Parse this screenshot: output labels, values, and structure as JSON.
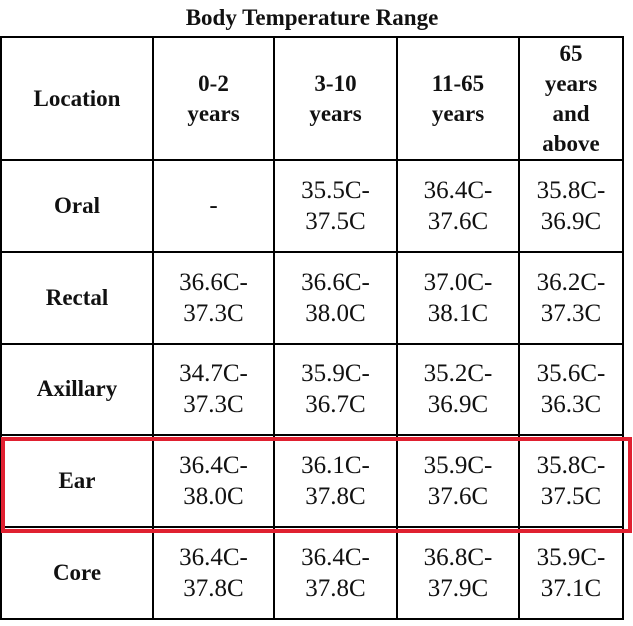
{
  "table": {
    "title": "Body Temperature Range",
    "header": [
      "Location",
      "0-2 years",
      "3-10 years",
      "11-65 years",
      "65 years and above"
    ],
    "rows": [
      [
        "Oral",
        "-",
        "35.5C-37.5C",
        "36.4C-37.6C",
        "35.8C-36.9C"
      ],
      [
        "Rectal",
        "36.6C-37.3C",
        "36.6C-38.0C",
        "37.0C-38.1C",
        "36.2C-37.3C"
      ],
      [
        "Axillary",
        "34.7C-37.3C",
        "35.9C-36.7C",
        "35.2C-36.9C",
        "35.6C-36.3C"
      ],
      [
        "Ear",
        "36.4C-38.0C",
        "36.1C-37.8C",
        "35.9C-37.6C",
        "35.8C-37.5C"
      ],
      [
        "Core",
        "36.4C-37.8C",
        "36.4C-37.8C",
        "36.8C-37.9C",
        "35.9C-37.1C"
      ]
    ]
  }
}
